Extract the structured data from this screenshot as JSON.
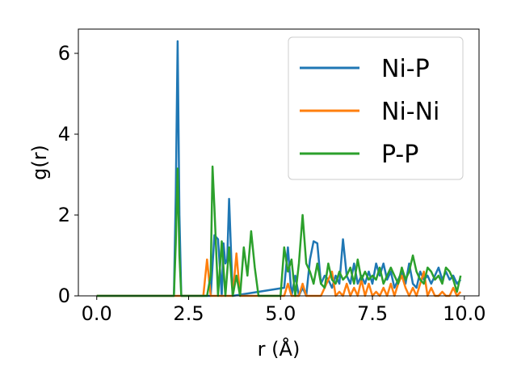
{
  "chart_data": {
    "type": "line",
    "xlabel": "r (Å)",
    "ylabel": "g(r)",
    "xlim": [
      -0.5,
      10.4
    ],
    "ylim": [
      0,
      6.6
    ],
    "xticks": [
      0.0,
      2.5,
      5.0,
      7.5,
      10.0
    ],
    "xtick_labels": [
      "0.0",
      "2.5",
      "5.0",
      "7.5",
      "10.0"
    ],
    "yticks": [
      0,
      2,
      4,
      6
    ],
    "ytick_labels": [
      "0",
      "2",
      "4",
      "6"
    ],
    "grid": false,
    "legend_position": "top-right",
    "series": [
      {
        "name": "Ni-P",
        "color": "#1f77b4",
        "x": [
          0.0,
          2.1,
          2.15,
          2.2,
          2.25,
          2.3,
          3.1,
          3.2,
          3.3,
          3.4,
          3.45,
          3.5,
          3.55,
          3.6,
          3.65,
          3.7,
          5.1,
          5.2,
          5.3,
          5.4,
          5.5,
          5.6,
          5.7,
          5.8,
          5.9,
          6.0,
          6.1,
          6.2,
          6.3,
          6.4,
          6.5,
          6.6,
          6.7,
          6.8,
          6.9,
          7.0,
          7.1,
          7.2,
          7.3,
          7.4,
          7.5,
          7.6,
          7.7,
          7.8,
          7.9,
          8.0,
          8.1,
          8.2,
          8.3,
          8.4,
          8.5,
          8.6,
          8.7,
          8.8,
          8.9,
          9.0,
          9.1,
          9.2,
          9.3,
          9.4,
          9.5,
          9.6,
          9.7,
          9.8,
          9.9
        ],
        "y": [
          0.0,
          0.0,
          2.5,
          6.3,
          2.0,
          0.0,
          0.0,
          1.5,
          1.4,
          0.0,
          1.3,
          0.8,
          0.9,
          2.4,
          1.2,
          0.0,
          0.2,
          1.2,
          0.0,
          0.5,
          0.0,
          0.2,
          0.0,
          0.9,
          1.35,
          1.3,
          0.3,
          0.5,
          0.4,
          0.2,
          0.5,
          0.3,
          1.4,
          0.5,
          0.3,
          0.8,
          0.3,
          0.5,
          0.3,
          0.6,
          0.3,
          0.8,
          0.5,
          0.8,
          0.4,
          0.6,
          0.2,
          0.4,
          0.6,
          0.3,
          0.8,
          0.3,
          0.2,
          0.6,
          0.4,
          0.5,
          0.3,
          0.5,
          0.7,
          0.4,
          0.6,
          0.4,
          0.5,
          0.3,
          0.4
        ]
      },
      {
        "name": "Ni-Ni",
        "color": "#ff7f0e",
        "x": [
          0.0,
          2.9,
          3.0,
          3.1,
          3.2,
          3.3,
          3.5,
          3.6,
          3.7,
          3.8,
          3.9,
          4.0,
          4.1,
          4.2,
          4.3,
          4.4,
          5.0,
          5.1,
          5.2,
          5.3,
          5.4,
          5.5,
          5.6,
          5.7,
          5.8,
          5.9,
          6.0,
          6.1,
          6.2,
          6.3,
          6.4,
          6.5,
          6.6,
          6.7,
          6.8,
          6.9,
          7.0,
          7.1,
          7.2,
          7.3,
          7.4,
          7.5,
          7.6,
          7.7,
          7.8,
          7.9,
          8.0,
          8.1,
          8.2,
          8.3,
          8.4,
          8.5,
          8.6,
          8.7,
          8.8,
          8.9,
          9.0,
          9.1,
          9.2,
          9.3,
          9.4,
          9.5,
          9.6,
          9.7,
          9.8,
          9.9
        ],
        "y": [
          0.0,
          0.0,
          0.9,
          0.0,
          0.0,
          0.0,
          0.0,
          0.0,
          0.0,
          1.05,
          0.0,
          0.0,
          0.0,
          0.0,
          0.0,
          0.0,
          0.0,
          0.0,
          0.3,
          0.0,
          0.0,
          0.0,
          0.3,
          0.0,
          0.0,
          0.0,
          0.0,
          0.0,
          0.2,
          0.4,
          0.6,
          0.0,
          0.1,
          0.0,
          0.3,
          0.0,
          0.2,
          0.0,
          0.4,
          0.0,
          0.3,
          0.0,
          0.1,
          0.0,
          0.2,
          0.0,
          0.3,
          0.0,
          0.3,
          0.5,
          0.2,
          0.0,
          0.2,
          0.0,
          0.3,
          0.6,
          0.0,
          0.2,
          0.0,
          0.0,
          0.1,
          0.0,
          0.0,
          0.2,
          0.0,
          0.1
        ]
      },
      {
        "name": "P-P",
        "color": "#2ca02c",
        "x": [
          0.0,
          2.1,
          2.15,
          2.2,
          2.25,
          2.3,
          3.0,
          3.1,
          3.15,
          3.2,
          3.3,
          3.4,
          3.5,
          3.6,
          3.7,
          3.8,
          3.9,
          4.0,
          4.1,
          4.2,
          4.3,
          4.4,
          5.0,
          5.1,
          5.2,
          5.3,
          5.4,
          5.5,
          5.6,
          5.7,
          5.8,
          5.9,
          6.0,
          6.1,
          6.2,
          6.3,
          6.4,
          6.5,
          6.6,
          6.7,
          6.8,
          6.9,
          7.0,
          7.1,
          7.2,
          7.3,
          7.4,
          7.5,
          7.6,
          7.7,
          7.8,
          7.9,
          8.0,
          8.1,
          8.2,
          8.3,
          8.4,
          8.5,
          8.6,
          8.7,
          8.8,
          8.9,
          9.0,
          9.1,
          9.2,
          9.3,
          9.4,
          9.5,
          9.6,
          9.7,
          9.8,
          9.9
        ],
        "y": [
          0.0,
          0.0,
          1.3,
          3.15,
          1.0,
          0.0,
          0.0,
          0.5,
          3.2,
          2.2,
          0.0,
          1.35,
          0.0,
          1.2,
          0.0,
          0.5,
          0.0,
          1.2,
          0.5,
          1.6,
          0.7,
          0.0,
          0.0,
          1.2,
          0.6,
          0.9,
          0.0,
          0.8,
          2.0,
          0.8,
          0.6,
          0.3,
          0.8,
          0.3,
          0.2,
          0.8,
          0.4,
          0.3,
          0.6,
          0.4,
          0.5,
          0.7,
          0.3,
          0.9,
          0.4,
          0.6,
          0.4,
          0.5,
          0.4,
          0.7,
          0.3,
          0.5,
          0.7,
          0.5,
          0.3,
          0.7,
          0.4,
          0.6,
          1.0,
          0.6,
          0.4,
          0.3,
          0.7,
          0.6,
          0.4,
          0.5,
          0.3,
          0.7,
          0.6,
          0.4,
          0.1,
          0.5
        ]
      }
    ]
  }
}
